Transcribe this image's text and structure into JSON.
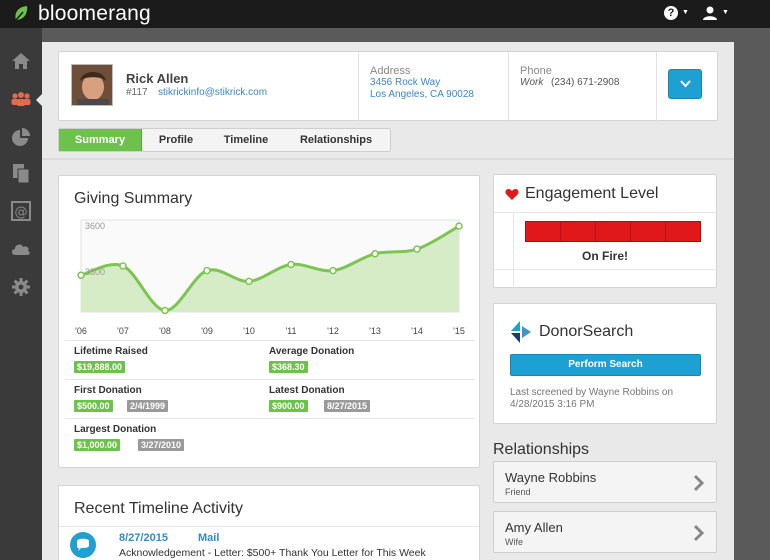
{
  "app": {
    "brand": "bloomerang",
    "brand_color": "#6cc24a",
    "accent": "#1ea0d2"
  },
  "topbar": {
    "help_icon": "question-circle-icon",
    "user_icon": "user-icon"
  },
  "nav": {
    "icons": [
      "home-icon",
      "constituents-icon",
      "reports-pie-icon",
      "documents-icon",
      "email-at-icon",
      "cloud-icon",
      "settings-gear-icon"
    ],
    "active": "constituents-icon"
  },
  "profile": {
    "name": "Rick Allen",
    "id": "#117",
    "email": "stikrickinfo@stikrick.com",
    "address_label": "Address",
    "address_line1": "3456 Rock Way",
    "address_line2": "Los Angeles, CA 90028",
    "phone_label": "Phone",
    "phone_type": "Work",
    "phone_number": "(234) 671-2908"
  },
  "tabs": [
    {
      "label": "Summary",
      "active": true
    },
    {
      "label": "Profile",
      "active": false
    },
    {
      "label": "Timeline",
      "active": false
    },
    {
      "label": "Relationships",
      "active": false
    }
  ],
  "giving_summary": {
    "title": "Giving Summary",
    "stats": {
      "lifetime_label": "Lifetime Raised",
      "lifetime_value": "$19,888.00",
      "avg_label": "Average Donation",
      "avg_value": "$368.30",
      "first_label": "First Donation",
      "first_amount": "$500.00",
      "first_date": "2/4/1999",
      "latest_label": "Latest Donation",
      "latest_amount": "$900.00",
      "latest_date": "8/27/2015",
      "largest_label": "Largest Donation",
      "largest_amount": "$1,000.00",
      "largest_date": "3/27/2010"
    }
  },
  "chart_data": {
    "type": "area",
    "x": [
      "'06",
      "'07",
      "'08",
      "'09",
      "'10",
      "'11",
      "'12",
      "'13",
      "'14",
      "'15"
    ],
    "values": [
      3280,
      3340,
      3050,
      3310,
      3240,
      3350,
      3310,
      3420,
      3450,
      3600
    ],
    "y_tick_labels": [
      "3600",
      "3300"
    ],
    "ylim": [
      3040,
      3640
    ],
    "grid": false,
    "color": "#7dc451"
  },
  "engagement": {
    "title": "Engagement Level",
    "level": "On Fire!",
    "segments": 5,
    "icon": "heart-icon"
  },
  "donorsearch": {
    "title": "DonorSearch",
    "button": "Perform Search",
    "screened_text": "Last screened by Wayne Robbins on 4/28/2015 3:16 PM",
    "icon": "donorsearch-logo-icon"
  },
  "relationships": {
    "title": "Relationships",
    "items": [
      {
        "name": "Wayne Robbins",
        "relation": "Friend"
      },
      {
        "name": "Amy Allen",
        "relation": "Wife"
      }
    ]
  },
  "timeline": {
    "title": "Recent Timeline Activity",
    "items": [
      {
        "date": "8/27/2015",
        "type": "Mail",
        "text": "Acknowledgement - Letter: $500+ Thank You Letter for This Week",
        "icon": "speech-bubble-icon"
      }
    ]
  }
}
